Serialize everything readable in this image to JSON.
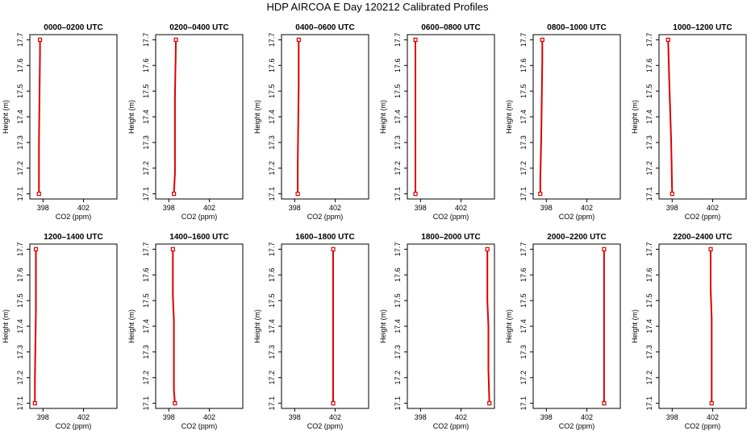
{
  "title": "HDP AIRCOA E  Day 120212  Calibrated Profiles",
  "chart_data": {
    "type": "line",
    "title": "HDP AIRCOA E  Day 120212  Calibrated Profiles",
    "xlabel": "CO2 (ppm)",
    "ylabel": "Height (m)",
    "xlim": [
      396.7,
      405.3
    ],
    "ylim": [
      17.08,
      17.72
    ],
    "xticks": [
      "398",
      "402"
    ],
    "yticks": [
      "17.1",
      "17.2",
      "17.3",
      "17.4",
      "17.5",
      "17.6",
      "17.7"
    ],
    "grid": false,
    "line_color": "#dd0000",
    "panels": [
      {
        "title": "0000–0200 UTC",
        "points": [
          [
            397.6,
            17.1
          ],
          [
            397.6,
            17.3
          ],
          [
            397.7,
            17.65
          ],
          [
            397.7,
            17.7
          ]
        ]
      },
      {
        "title": "0200–0400 UTC",
        "points": [
          [
            398.5,
            17.1
          ],
          [
            398.6,
            17.18
          ],
          [
            398.6,
            17.48
          ],
          [
            398.7,
            17.7
          ]
        ]
      },
      {
        "title": "0400–0600 UTC",
        "points": [
          [
            398.3,
            17.1
          ],
          [
            398.3,
            17.22
          ],
          [
            398.4,
            17.52
          ],
          [
            398.4,
            17.7
          ]
        ]
      },
      {
        "title": "0600–0800 UTC",
        "points": [
          [
            397.5,
            17.1
          ],
          [
            397.5,
            17.4
          ],
          [
            397.5,
            17.7
          ]
        ]
      },
      {
        "title": "0800–1000 UTC",
        "points": [
          [
            397.4,
            17.1
          ],
          [
            397.4,
            17.15
          ],
          [
            397.5,
            17.32
          ],
          [
            397.6,
            17.62
          ],
          [
            397.6,
            17.7
          ]
        ]
      },
      {
        "title": "1000–1200 UTC",
        "points": [
          [
            398.0,
            17.1
          ],
          [
            397.9,
            17.3
          ],
          [
            397.7,
            17.55
          ],
          [
            397.6,
            17.7
          ]
        ]
      },
      {
        "title": "1200–1400 UTC",
        "points": [
          [
            397.2,
            17.1
          ],
          [
            397.2,
            17.2
          ],
          [
            397.3,
            17.46
          ],
          [
            397.3,
            17.7
          ]
        ]
      },
      {
        "title": "1400–1600 UTC",
        "points": [
          [
            398.6,
            17.1
          ],
          [
            398.5,
            17.15
          ],
          [
            398.5,
            17.42
          ],
          [
            398.4,
            17.52
          ],
          [
            398.4,
            17.7
          ]
        ]
      },
      {
        "title": "1600–1800 UTC",
        "points": [
          [
            401.8,
            17.1
          ],
          [
            401.8,
            17.33
          ],
          [
            401.8,
            17.7
          ]
        ]
      },
      {
        "title": "1800–2000 UTC",
        "points": [
          [
            404.8,
            17.1
          ],
          [
            404.7,
            17.23
          ],
          [
            404.7,
            17.4
          ],
          [
            404.6,
            17.5
          ],
          [
            404.6,
            17.7
          ]
        ]
      },
      {
        "title": "2000–2200 UTC",
        "points": [
          [
            403.7,
            17.1
          ],
          [
            403.7,
            17.28
          ],
          [
            403.7,
            17.65
          ],
          [
            403.7,
            17.7
          ]
        ]
      },
      {
        "title": "2200–2400 UTC",
        "points": [
          [
            401.9,
            17.1
          ],
          [
            401.9,
            17.22
          ],
          [
            401.9,
            17.43
          ],
          [
            401.8,
            17.55
          ],
          [
            401.8,
            17.7
          ]
        ]
      }
    ]
  }
}
